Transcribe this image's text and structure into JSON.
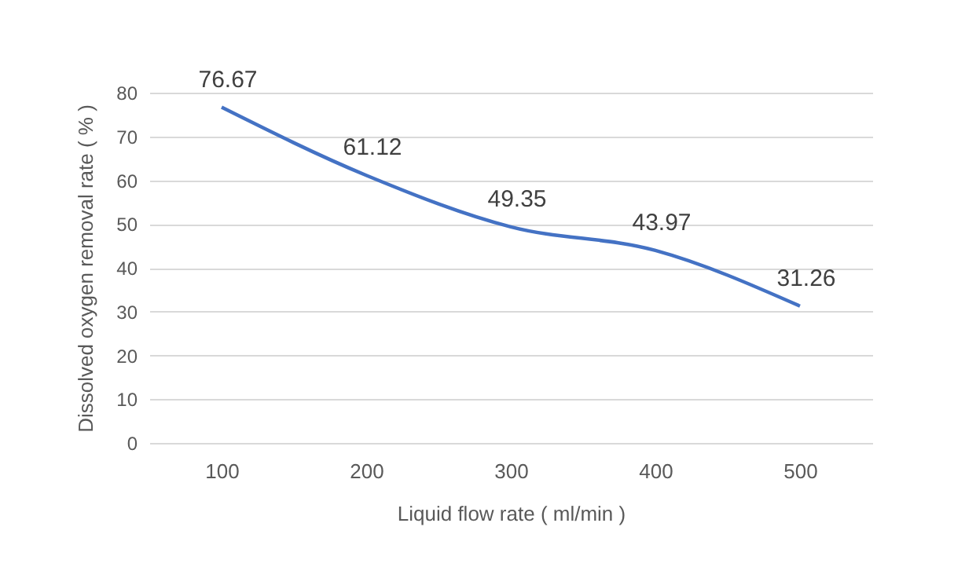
{
  "chart_data": {
    "type": "line",
    "xlabel": "Liquid flow rate ( ml/min )",
    "ylabel": "Dissolved oxygen removal rate ( % )",
    "categories": [
      "100",
      "200",
      "300",
      "400",
      "500"
    ],
    "series": [
      {
        "color": "#4472c4",
        "values": [
          76.67,
          61.12,
          49.35,
          43.97,
          31.26
        ]
      }
    ],
    "ylim": [
      0,
      80
    ],
    "yticks": [
      0,
      10,
      20,
      30,
      40,
      50,
      60,
      70,
      80
    ],
    "grid": "y",
    "data_labels": true,
    "legend": false
  }
}
